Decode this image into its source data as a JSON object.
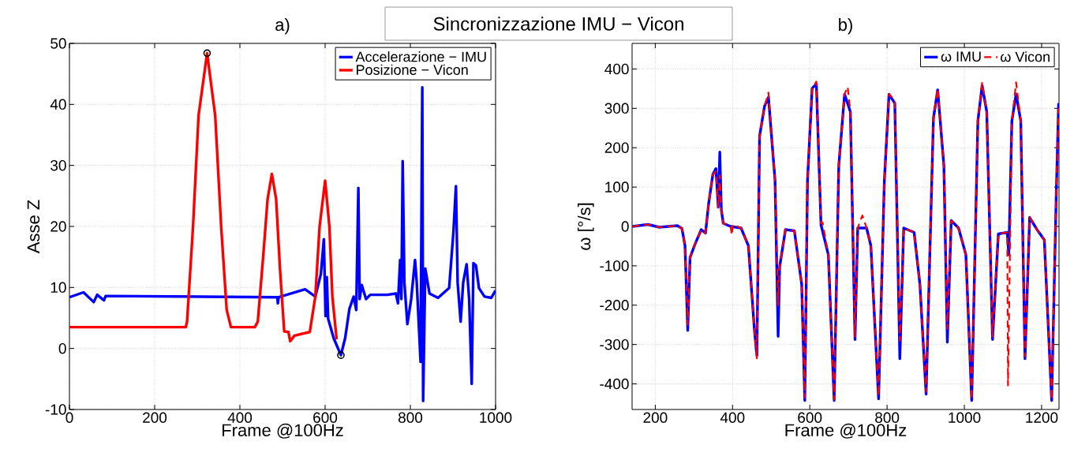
{
  "chart_data": [
    {
      "type": "line",
      "title": "a)",
      "xlabel": "Frame @100Hz",
      "ylabel": "Asse Z",
      "annotations": [
        "Sincronizzazione IMU − Vicon"
      ],
      "xlim": [
        0,
        1000
      ],
      "ylim": [
        -10,
        50
      ],
      "xticks": [
        0,
        200,
        400,
        600,
        800,
        1000
      ],
      "yticks": [
        -10,
        0,
        10,
        20,
        30,
        40,
        50
      ],
      "grid": true,
      "legend": "top right",
      "series": [
        {
          "name": "Accelerazione − IMU",
          "color": "#0000ff",
          "x": [
            0,
            33,
            57,
            65,
            81,
            85,
            488,
            489,
            491,
            553,
            577,
            590,
            597,
            601,
            604,
            607,
            620,
            637,
            647,
            657,
            667,
            673,
            678,
            681,
            686,
            696,
            706,
            746,
            766,
            771,
            776,
            779,
            782,
            786,
            793,
            802,
            811,
            815,
            824,
            828,
            830,
            835,
            845,
            865,
            891,
            901,
            907,
            911,
            918,
            924,
            932,
            938,
            944,
            948,
            954,
            961,
            974,
            990,
            1000
          ],
          "values": [
            8.4,
            9.2,
            7.6,
            8.8,
            7.9,
            8.6,
            8.4,
            7.4,
            8.4,
            9.7,
            8.5,
            12.2,
            17.9,
            5.3,
            11.7,
            4.9,
            1.7,
            -1.1,
            1.7,
            6.5,
            8.5,
            6.3,
            26.3,
            8.1,
            10.4,
            8.1,
            8.8,
            8.8,
            9,
            7.4,
            14.5,
            8.1,
            30.7,
            10.8,
            4,
            8.1,
            14.5,
            10.8,
            -2.2,
            42.8,
            -8.6,
            13.1,
            9,
            8.3,
            9.9,
            19,
            26.6,
            10.8,
            4.4,
            10.8,
            13.8,
            8.1,
            -5.8,
            14,
            13.6,
            9.9,
            8.5,
            8.3,
            9.5
          ]
        },
        {
          "name": "Posizione − Vicon",
          "color": "#ff0000",
          "x": [
            0,
            273,
            276,
            290,
            303,
            323,
            342,
            356,
            369,
            379,
            435,
            442,
            455,
            465,
            475,
            485,
            494,
            504,
            514,
            518,
            528,
            564,
            577,
            587,
            600,
            610,
            617,
            627
          ],
          "values": [
            3.5,
            3.5,
            4.4,
            20,
            38.2,
            48.4,
            38.2,
            20,
            6.3,
            3.5,
            3.5,
            4.4,
            15.4,
            24.5,
            28.6,
            24.5,
            13.1,
            2.8,
            2.7,
            1.2,
            2.1,
            2.7,
            8.5,
            20,
            27.5,
            20,
            8.5,
            1.5
          ]
        },
        {
          "type": "scatter",
          "marker": "circle",
          "color": "#000000",
          "x": [
            323,
            637
          ],
          "values": [
            48.4,
            -1.1
          ]
        }
      ]
    },
    {
      "type": "line",
      "title": "b)",
      "xlabel": "Frame @100Hz",
      "ylabel": "ω [°/s]",
      "xlim": [
        140,
        1245
      ],
      "ylim": [
        -465,
        465
      ],
      "xticks": [
        200,
        400,
        600,
        800,
        1000,
        1200
      ],
      "yticks": [
        -400,
        -300,
        -200,
        -100,
        0,
        100,
        200,
        300,
        400
      ],
      "grid": true,
      "legend": "top right",
      "series": [
        {
          "name": "ω IMU",
          "color": "#0000ff",
          "x": [
            141,
            181,
            211,
            257,
            269,
            277,
            284,
            290,
            303,
            319,
            330,
            338,
            349,
            357,
            363,
            367,
            371,
            376,
            395,
            422,
            441,
            457,
            463,
            470,
            483,
            493,
            510,
            518,
            522,
            537,
            560,
            579,
            587,
            594,
            606,
            617,
            629,
            648,
            663,
            675,
            690,
            705,
            717,
            724,
            747,
            758,
            778,
            793,
            805,
            820,
            833,
            843,
            870,
            885,
            901,
            920,
            931,
            947,
            956,
            966,
            985,
            1004,
            1019,
            1035,
            1046,
            1058,
            1073,
            1088,
            1111,
            1115,
            1123,
            1134,
            1146,
            1157,
            1169,
            1188,
            1207,
            1226,
            1238,
            1244
          ],
          "values": [
            0,
            5,
            -2,
            2,
            -5,
            -49,
            -264,
            -79,
            -45,
            -8,
            -17,
            57,
            132,
            147,
            49,
            189,
            42,
            8,
            0,
            -4,
            -49,
            -268,
            -328,
            230,
            306,
            328,
            117,
            -279,
            -102,
            -8,
            -11,
            -147,
            -442,
            117,
            351,
            362,
            4,
            -72,
            -442,
            155,
            336,
            291,
            -287,
            -4,
            -4,
            -49,
            -438,
            117,
            336,
            313,
            -336,
            -4,
            -15,
            -147,
            -426,
            275,
            347,
            155,
            -294,
            15,
            -4,
            -72,
            -442,
            268,
            358,
            291,
            -287,
            -19,
            -15,
            -72,
            268,
            336,
            268,
            -336,
            23,
            -8,
            -34,
            -442,
            87,
            313
          ]
        },
        {
          "name": "ω Vicon",
          "color": "#ff0000",
          "line_style": "dashed",
          "x": [
            141,
            181,
            211,
            257,
            269,
            277,
            284,
            290,
            303,
            319,
            330,
            338,
            349,
            357,
            363,
            367,
            371,
            376,
            395,
            398,
            401,
            422,
            441,
            457,
            463,
            470,
            483,
            493,
            510,
            518,
            522,
            537,
            560,
            579,
            587,
            594,
            606,
            617,
            629,
            633,
            648,
            663,
            675,
            690,
            698,
            705,
            717,
            724,
            736,
            747,
            758,
            778,
            793,
            805,
            820,
            833,
            843,
            870,
            885,
            901,
            920,
            931,
            947,
            956,
            966,
            985,
            1004,
            1019,
            1035,
            1046,
            1058,
            1073,
            1088,
            1111,
            1113,
            1123,
            1134,
            1146,
            1157,
            1169,
            1188,
            1207,
            1226,
            1238,
            1244
          ],
          "values": [
            0,
            5,
            -2,
            2,
            -5,
            -49,
            -250,
            -79,
            -45,
            -8,
            -17,
            57,
            132,
            140,
            49,
            130,
            42,
            8,
            0,
            -22,
            5,
            -4,
            -49,
            -268,
            -335,
            230,
            306,
            340,
            117,
            -200,
            -102,
            -8,
            -11,
            -147,
            -435,
            117,
            351,
            368,
            8,
            10,
            -72,
            -440,
            155,
            336,
            355,
            291,
            -280,
            -4,
            28,
            -4,
            -49,
            -430,
            117,
            336,
            320,
            -290,
            -4,
            -15,
            -147,
            -420,
            275,
            350,
            155,
            -260,
            15,
            -4,
            -72,
            -440,
            268,
            365,
            291,
            -280,
            -19,
            -15,
            -404,
            268,
            366,
            268,
            -330,
            23,
            -8,
            -34,
            -440,
            87,
            300
          ]
        }
      ]
    }
  ]
}
